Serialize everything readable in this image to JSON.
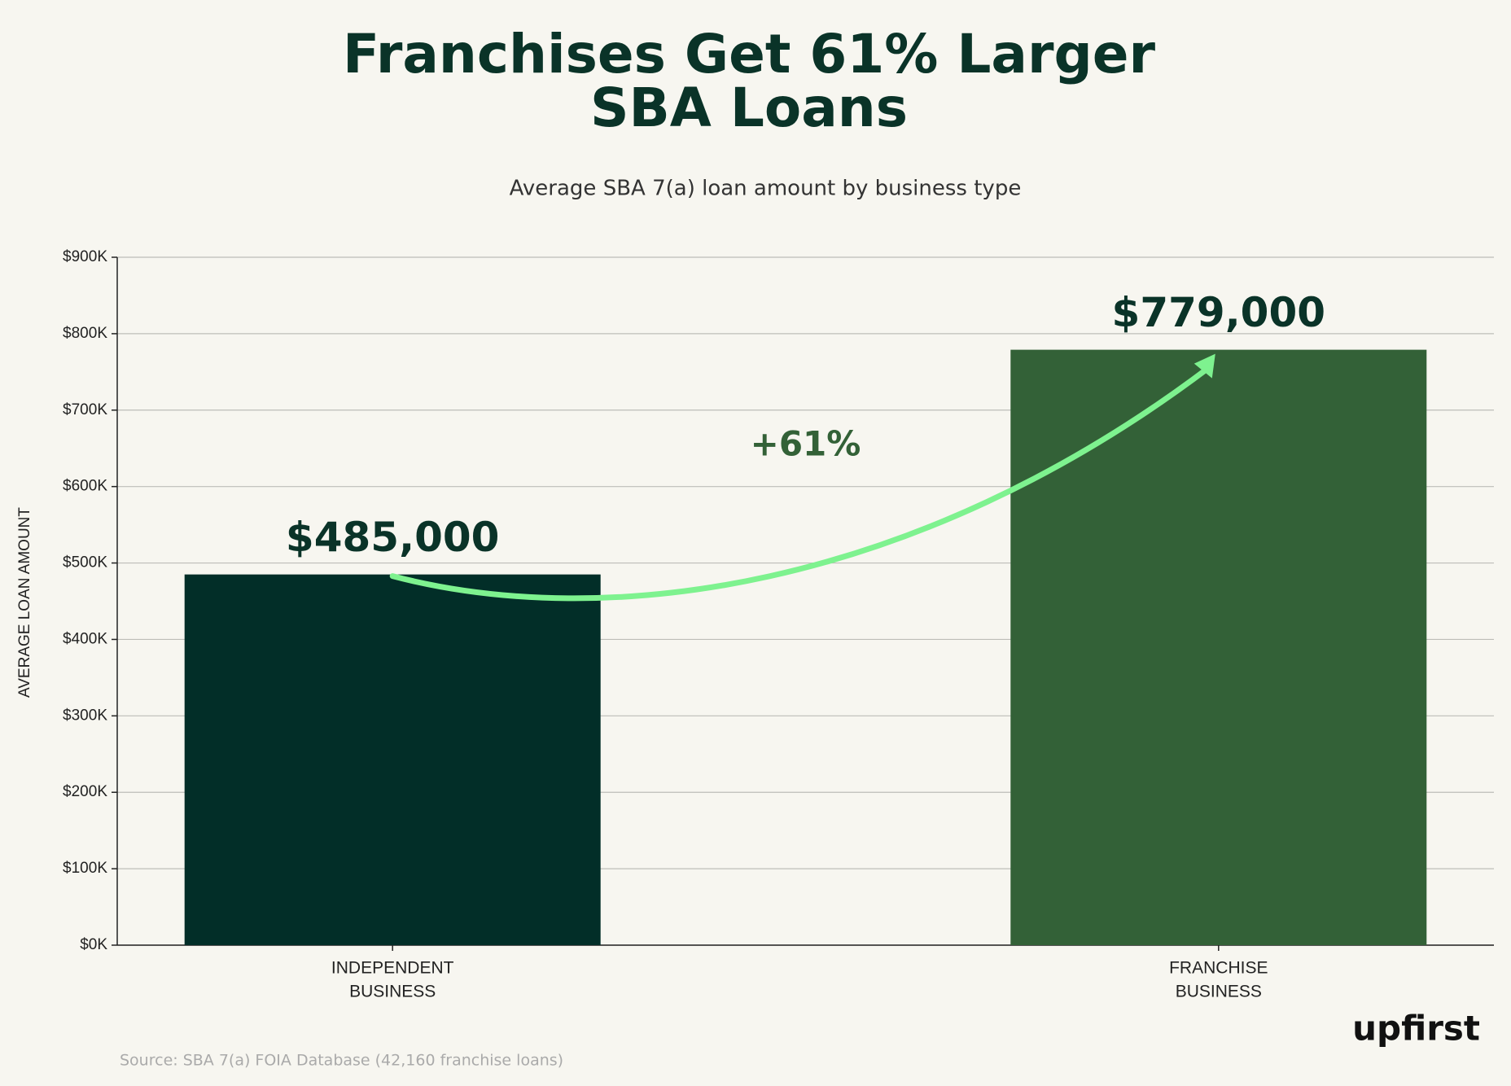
{
  "chart_data": {
    "type": "bar",
    "title": [
      "Franchises Get 61% Larger",
      "SBA Loans"
    ],
    "subtitle": "Average SBA 7(a) loan amount by business type",
    "y_label": "AVERAGE LOAN AMOUNT",
    "categories": [
      [
        "INDEPENDENT",
        "BUSINESS"
      ],
      [
        "FRANCHISE",
        "BUSINESS"
      ]
    ],
    "values": [
      485000,
      779000
    ],
    "value_labels": [
      "$485,000",
      "$779,000"
    ],
    "colors": [
      "#022e28",
      "#336137"
    ],
    "ylim": [
      0,
      900000
    ],
    "yticks": [
      {
        "value": 0,
        "label": "$0K"
      },
      {
        "value": 100000,
        "label": "$100K"
      },
      {
        "value": 200000,
        "label": "$200K"
      },
      {
        "value": 300000,
        "label": "$300K"
      },
      {
        "value": 400000,
        "label": "$400K"
      },
      {
        "value": 500000,
        "label": "$500K"
      },
      {
        "value": 600000,
        "label": "$600K"
      },
      {
        "value": 700000,
        "label": "$700K"
      },
      {
        "value": 800000,
        "label": "$800K"
      },
      {
        "value": 900000,
        "label": "$900K"
      }
    ],
    "grid": true,
    "annotation": "+61%",
    "source": "Source: SBA 7(a) FOIA Database (42,160 franchise loans)",
    "logo": "upfirst"
  }
}
